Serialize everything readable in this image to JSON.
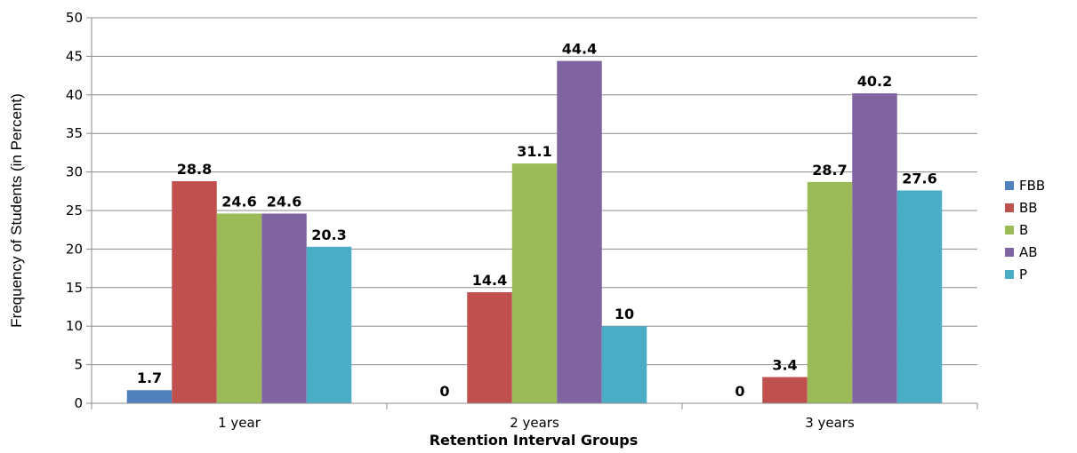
{
  "chart_data": {
    "type": "bar",
    "title": "",
    "xlabel": "Retention Interval Groups",
    "ylabel": "Frequency of Students (in Percent)",
    "ylim": [
      0,
      50
    ],
    "yticks": [
      0,
      5,
      10,
      15,
      20,
      25,
      30,
      35,
      40,
      45,
      50
    ],
    "grid": true,
    "legend_position": "right",
    "categories": [
      "1 year",
      "2 years",
      "3 years"
    ],
    "series": [
      {
        "name": "FBB",
        "color": "#4F81BD",
        "values": [
          1.7,
          0,
          0
        ]
      },
      {
        "name": "BB",
        "color": "#C0504D",
        "values": [
          28.8,
          14.4,
          3.4
        ]
      },
      {
        "name": "B",
        "color": "#9BBB59",
        "values": [
          24.6,
          31.1,
          28.7
        ]
      },
      {
        "name": "AB",
        "color": "#8064A2",
        "values": [
          24.6,
          44.4,
          40.2
        ]
      },
      {
        "name": "P",
        "color": "#4BACC6",
        "values": [
          20.3,
          10,
          27.6
        ]
      }
    ]
  }
}
